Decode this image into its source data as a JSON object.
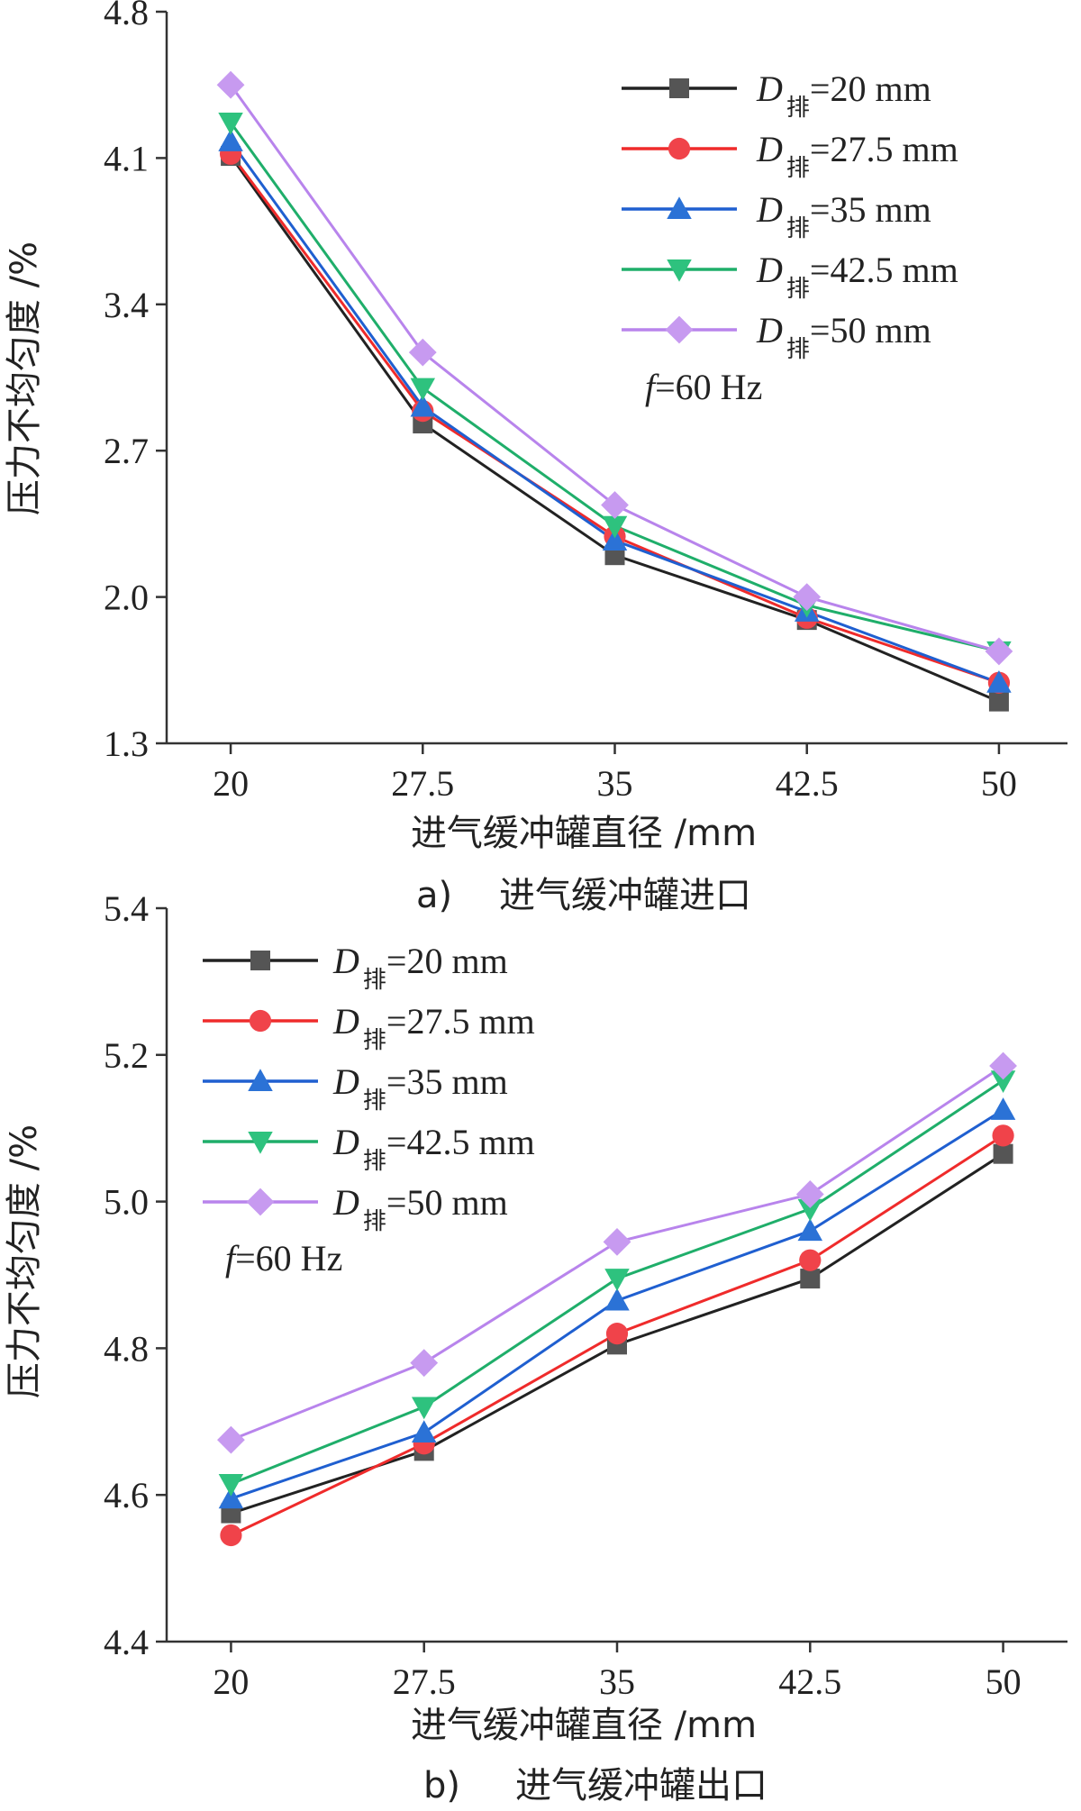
{
  "chart_data": [
    {
      "type": "line",
      "panel": "a",
      "caption_label": "a)",
      "caption_text": "进气缓冲罐进口",
      "xlabel": "进气缓冲罐直径 /mm",
      "ylabel": "压力不均匀度 /%",
      "categories": [
        "20",
        "27.5",
        "35",
        "42.5",
        "50"
      ],
      "x": [
        20,
        27.5,
        35,
        42.5,
        50
      ],
      "xlim": [
        17.5,
        52.5
      ],
      "ylim": [
        1.3,
        4.8
      ],
      "yticks": [
        "1.3",
        "2.0",
        "2.7",
        "3.4",
        "4.1",
        "4.8"
      ],
      "legend_position": "top-right",
      "annotation": {
        "italic": "f",
        "rest": "=60 Hz"
      },
      "series": [
        {
          "name": "D排=20 mm",
          "label_main": "D",
          "label_sub": "排",
          "label_rest": "=20 mm",
          "marker": "square",
          "color": "#555555",
          "line_color": "#222222",
          "values": [
            4.11,
            2.83,
            2.2,
            1.89,
            1.5
          ]
        },
        {
          "name": "D排=27.5 mm",
          "label_main": "D",
          "label_sub": "排",
          "label_rest": "=27.5 mm",
          "marker": "circle",
          "color": "#f0434a",
          "line_color": "#ef2b2b",
          "values": [
            4.12,
            2.89,
            2.29,
            1.9,
            1.59
          ]
        },
        {
          "name": "D排=35 mm",
          "label_main": "D",
          "label_sub": "排",
          "label_rest": "=35 mm",
          "marker": "triangle-up",
          "color": "#2b72d6",
          "line_color": "#1f5fd0",
          "values": [
            4.18,
            2.91,
            2.27,
            1.93,
            1.59
          ]
        },
        {
          "name": "D排=42.5 mm",
          "label_main": "D",
          "label_sub": "排",
          "label_rest": "=42.5 mm",
          "marker": "triangle-down",
          "color": "#2ec27e",
          "line_color": "#1fae6a",
          "values": [
            4.27,
            3.0,
            2.34,
            1.96,
            1.74
          ]
        },
        {
          "name": "D排=50 mm",
          "label_main": "D",
          "label_sub": "排",
          "label_rest": "=50 mm",
          "marker": "diamond",
          "color": "#c79af0",
          "line_color": "#b884ec",
          "values": [
            4.45,
            3.17,
            2.44,
            2.0,
            1.74
          ]
        }
      ]
    },
    {
      "type": "line",
      "panel": "b",
      "caption_label": "b)",
      "caption_text": "进气缓冲罐出口",
      "xlabel": "进气缓冲罐直径 /mm",
      "ylabel": "压力不均匀度 /%",
      "categories": [
        "20",
        "27.5",
        "35",
        "42.5",
        "50"
      ],
      "x": [
        20,
        27.5,
        35,
        42.5,
        50
      ],
      "xlim": [
        17.5,
        52.5
      ],
      "ylim": [
        4.4,
        5.4
      ],
      "yticks": [
        "4.4",
        "4.6",
        "4.8",
        "5.0",
        "5.2",
        "5.4"
      ],
      "legend_position": "top-left",
      "annotation": {
        "italic": "f",
        "rest": "=60 Hz"
      },
      "series": [
        {
          "name": "D排=20 mm",
          "label_main": "D",
          "label_sub": "排",
          "label_rest": "=20 mm",
          "marker": "square",
          "color": "#555555",
          "line_color": "#222222",
          "values": [
            4.575,
            4.66,
            4.805,
            4.895,
            5.065
          ]
        },
        {
          "name": "D排=27.5 mm",
          "label_main": "D",
          "label_sub": "排",
          "label_rest": "=27.5 mm",
          "marker": "circle",
          "color": "#f0434a",
          "line_color": "#ef2b2b",
          "values": [
            4.545,
            4.67,
            4.82,
            4.92,
            5.09
          ]
        },
        {
          "name": "D排=35 mm",
          "label_main": "D",
          "label_sub": "排",
          "label_rest": "=35 mm",
          "marker": "triangle-up",
          "color": "#2b72d6",
          "line_color": "#1f5fd0",
          "values": [
            4.595,
            4.685,
            4.865,
            4.96,
            5.125
          ]
        },
        {
          "name": "D排=42.5 mm",
          "label_main": "D",
          "label_sub": "排",
          "label_rest": "=42.5 mm",
          "marker": "triangle-down",
          "color": "#2ec27e",
          "line_color": "#1fae6a",
          "values": [
            4.615,
            4.72,
            4.895,
            4.99,
            5.165
          ]
        },
        {
          "name": "D排=50 mm",
          "label_main": "D",
          "label_sub": "排",
          "label_rest": "=50 mm",
          "marker": "diamond",
          "color": "#c79af0",
          "line_color": "#b884ec",
          "values": [
            4.675,
            4.78,
            4.945,
            5.01,
            5.185
          ]
        }
      ]
    }
  ]
}
